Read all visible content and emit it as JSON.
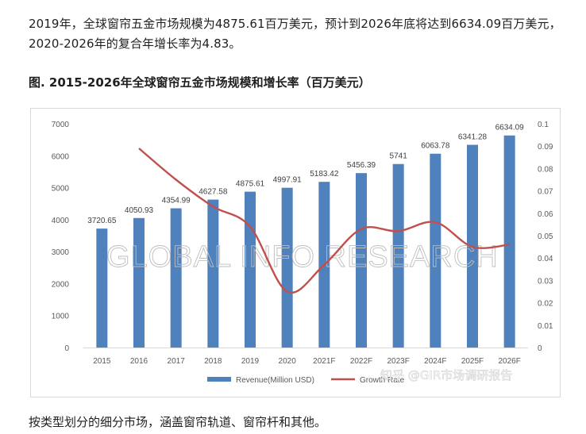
{
  "article": {
    "intro": "2019年，全球窗帘五金市场规模为4875.61百万美元，预计到2026年底将达到6634.09百万美元，2020-2026年的复合年增长率为4.83。",
    "figure_title": "图. 2015-2026年全球窗帘五金市场规模和增长率（百万美元）",
    "outro": "按类型划分的细分市场，涵盖窗帘轨道、窗帘杆和其他。"
  },
  "watermarks": {
    "chart_watermark": "GLOBAL INFO RESEARCH",
    "platform_watermark": "知乎 @GIR市场调研报告"
  },
  "chart_data": {
    "type": "bar",
    "categories": [
      "2015",
      "2016",
      "2017",
      "2018",
      "2019",
      "2020",
      "2021F",
      "2022F",
      "2023F",
      "2024F",
      "2025F",
      "2026F"
    ],
    "series": [
      {
        "name": "Revenue(Million USD)",
        "type": "bar",
        "axis": "left",
        "color": "#4f81bd",
        "values": [
          3720.65,
          4050.93,
          4354.99,
          4627.58,
          4875.61,
          4997.91,
          5183.42,
          5456.39,
          5741,
          6063.78,
          6341.28,
          6634.09
        ],
        "value_labels": [
          "3720.65",
          "4050.93",
          "4354.99",
          "4627.58",
          "4875.61",
          "4997.91",
          "5183.42",
          "5456.39",
          "5741",
          "6063.78",
          "6341.28",
          "6634.09"
        ]
      },
      {
        "name": "Growth Rate",
        "type": "line",
        "axis": "right",
        "color": "#c0504d",
        "values": [
          null,
          0.089,
          0.075,
          0.063,
          0.054,
          0.025,
          0.037,
          0.053,
          0.052,
          0.056,
          0.045,
          0.046
        ]
      }
    ],
    "y_left": {
      "min": 0,
      "max": 7000,
      "step": 1000,
      "ticks": [
        "0",
        "1000",
        "2000",
        "3000",
        "4000",
        "5000",
        "6000",
        "7000"
      ]
    },
    "y_right": {
      "min": 0,
      "max": 0.1,
      "step": 0.01,
      "ticks": [
        "0",
        "0.01",
        "0.02",
        "0.03",
        "0.04",
        "0.05",
        "0.06",
        "0.07",
        "0.08",
        "0.09",
        "0.1"
      ]
    },
    "grid": false,
    "legend": {
      "placement": "bottom",
      "entries": [
        "Revenue(Million USD)",
        "Growth Rate"
      ]
    }
  }
}
